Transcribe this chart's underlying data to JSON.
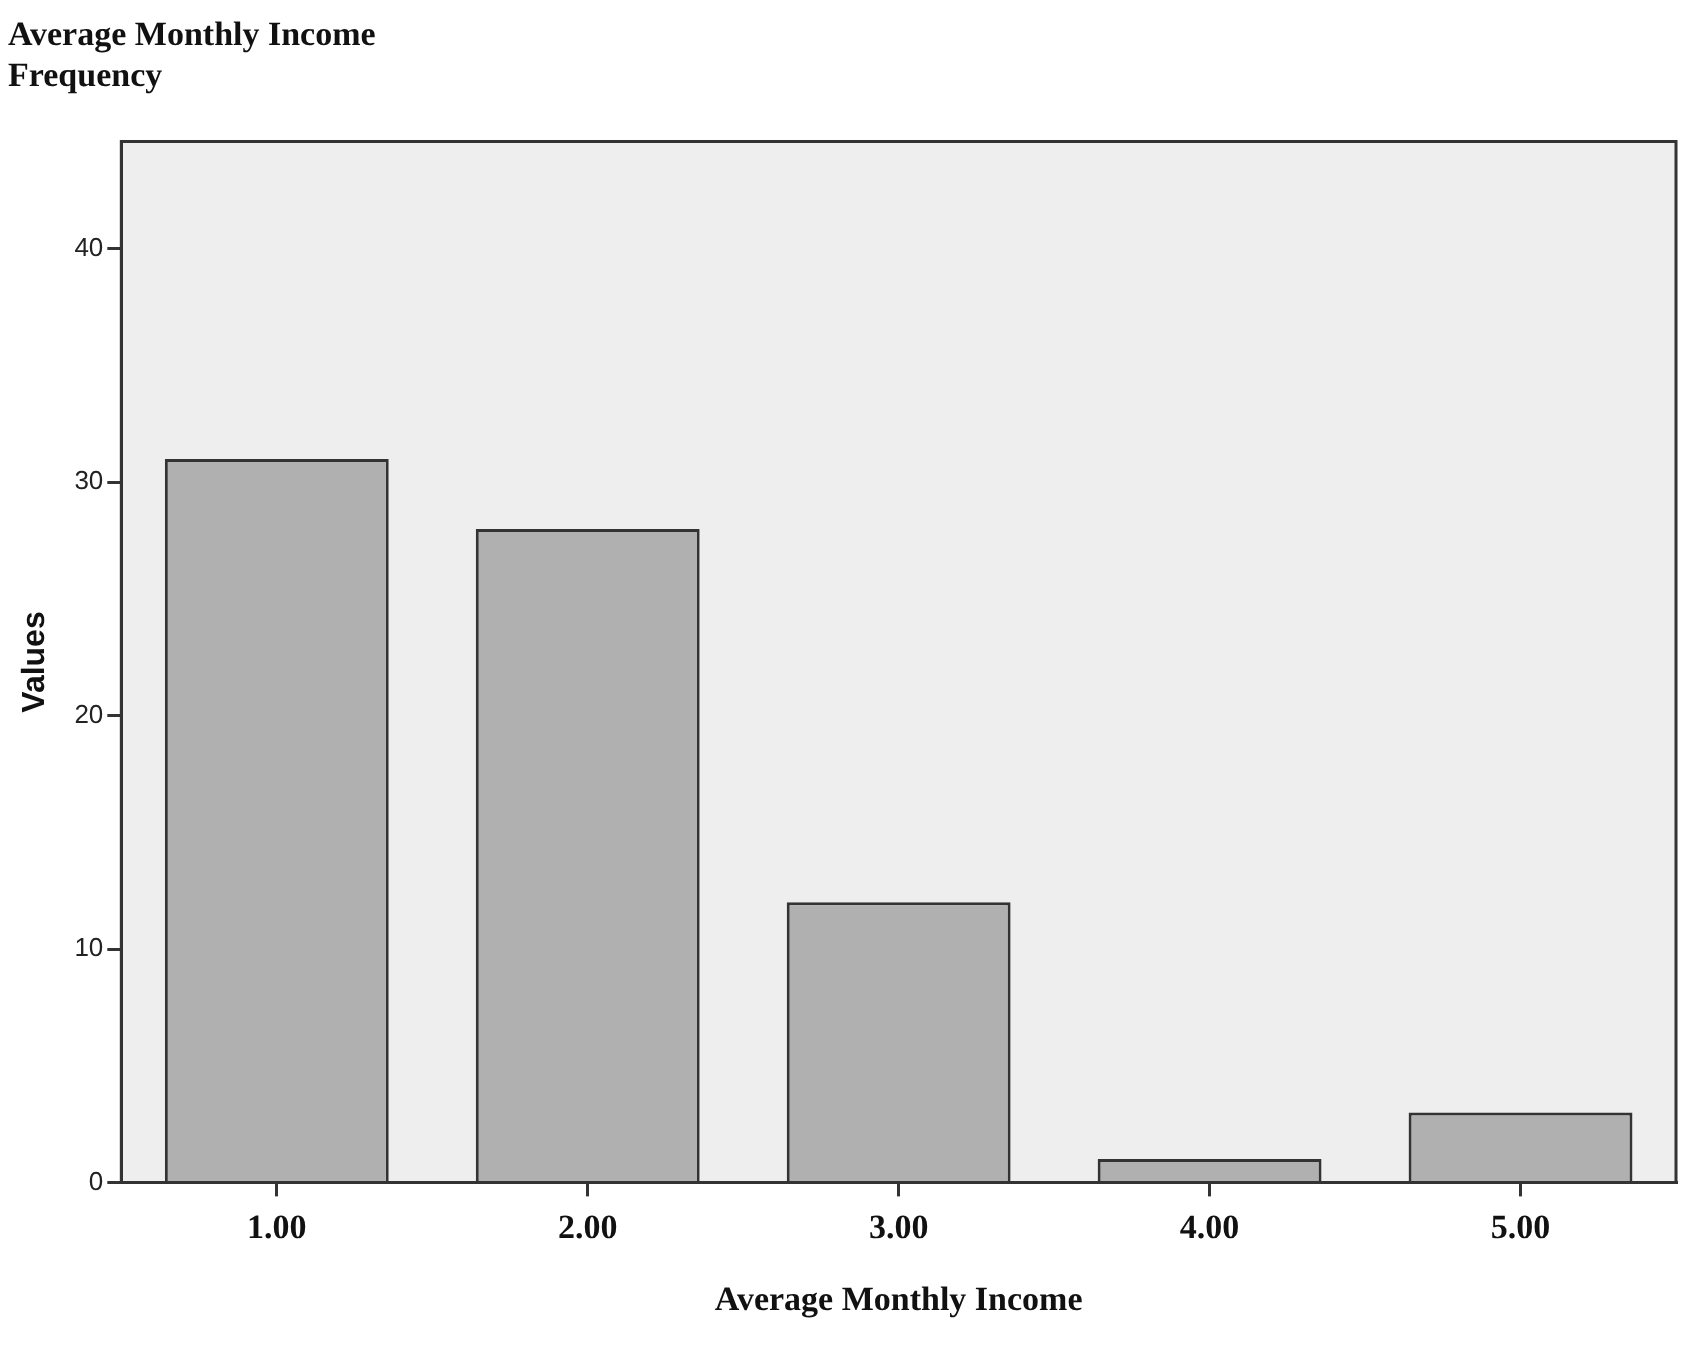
{
  "chart_data": {
    "type": "bar",
    "title": "Average Monthly Income",
    "subtitle": "Frequency",
    "xlabel": "Average Monthly Income",
    "ylabel": "Values",
    "categories": [
      "1.00",
      "2.00",
      "3.00",
      "4.00",
      "5.00"
    ],
    "values": [
      31,
      28,
      12,
      1,
      3
    ],
    "color": "#b0b0b0",
    "ylim": [
      0,
      44.6
    ],
    "yticks": [
      0,
      10,
      20,
      30,
      40
    ],
    "grid": false,
    "legend": false
  }
}
